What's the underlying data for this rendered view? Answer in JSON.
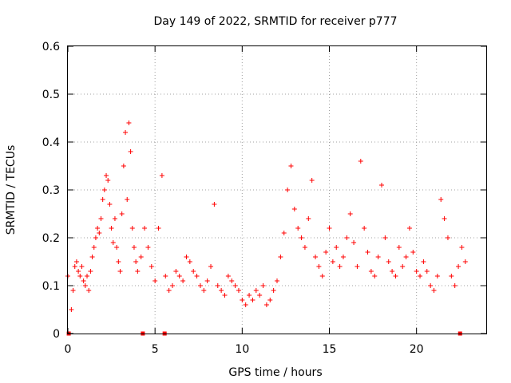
{
  "chart_data": {
    "type": "scatter",
    "title": "Day 149 of 2022, SRMTID for receiver p777",
    "xlabel": "GPS time / hours",
    "ylabel": "SRMTID / TECUs",
    "xlim": [
      0,
      24
    ],
    "ylim": [
      0,
      0.6
    ],
    "xticks": [
      0,
      5,
      10,
      15,
      20
    ],
    "xtick_labels": [
      "0",
      "5",
      "10",
      "15",
      "20"
    ],
    "yticks": [
      0,
      0.1,
      0.2,
      0.3,
      0.4,
      0.5,
      0.6
    ],
    "ytick_labels": [
      "0",
      "0.1",
      "0.2",
      "0.3",
      "0.4",
      "0.5",
      "0.6"
    ],
    "grid": true,
    "marker": "+",
    "series_color": "#ff0000",
    "series": [
      {
        "name": "SRMTID",
        "x": [
          0.0,
          0.2,
          0.3,
          0.4,
          0.5,
          0.6,
          0.7,
          0.8,
          0.9,
          1.0,
          1.1,
          1.2,
          1.3,
          1.4,
          1.5,
          1.6,
          1.7,
          1.8,
          1.9,
          2.0,
          2.1,
          2.2,
          2.3,
          2.4,
          2.5,
          2.6,
          2.7,
          2.8,
          2.9,
          3.0,
          3.1,
          3.2,
          3.3,
          3.4,
          3.5,
          3.6,
          3.7,
          3.8,
          3.9,
          4.0,
          4.2,
          4.4,
          4.6,
          4.8,
          5.0,
          5.2,
          5.4,
          5.6,
          5.8,
          6.0,
          6.2,
          6.4,
          6.6,
          6.8,
          7.0,
          7.2,
          7.4,
          7.6,
          7.8,
          8.0,
          8.2,
          8.4,
          8.6,
          8.8,
          9.0,
          9.2,
          9.4,
          9.6,
          9.8,
          10.0,
          10.2,
          10.4,
          10.6,
          10.8,
          11.0,
          11.2,
          11.4,
          11.6,
          11.8,
          12.0,
          12.2,
          12.4,
          12.6,
          12.8,
          13.0,
          13.2,
          13.4,
          13.6,
          13.8,
          14.0,
          14.2,
          14.4,
          14.6,
          14.8,
          15.0,
          15.2,
          15.4,
          15.6,
          15.8,
          16.0,
          16.2,
          16.4,
          16.6,
          16.8,
          17.0,
          17.2,
          17.4,
          17.6,
          17.8,
          18.0,
          18.2,
          18.4,
          18.6,
          18.8,
          19.0,
          19.2,
          19.4,
          19.6,
          19.8,
          20.0,
          20.2,
          20.4,
          20.6,
          20.8,
          21.0,
          21.2,
          21.4,
          21.6,
          21.8,
          22.0,
          22.2,
          22.4,
          22.6,
          22.8
        ],
        "y": [
          0.12,
          0.05,
          0.09,
          0.14,
          0.15,
          0.13,
          0.12,
          0.14,
          0.11,
          0.1,
          0.12,
          0.09,
          0.13,
          0.16,
          0.18,
          0.2,
          0.22,
          0.21,
          0.24,
          0.28,
          0.3,
          0.33,
          0.32,
          0.27,
          0.22,
          0.19,
          0.24,
          0.18,
          0.15,
          0.13,
          0.25,
          0.35,
          0.42,
          0.28,
          0.44,
          0.38,
          0.22,
          0.18,
          0.15,
          0.13,
          0.16,
          0.22,
          0.18,
          0.14,
          0.11,
          0.22,
          0.33,
          0.12,
          0.09,
          0.1,
          0.13,
          0.12,
          0.11,
          0.16,
          0.15,
          0.13,
          0.12,
          0.1,
          0.09,
          0.11,
          0.14,
          0.27,
          0.1,
          0.09,
          0.08,
          0.12,
          0.11,
          0.1,
          0.09,
          0.07,
          0.06,
          0.08,
          0.07,
          0.09,
          0.08,
          0.1,
          0.06,
          0.07,
          0.09,
          0.11,
          0.16,
          0.21,
          0.3,
          0.35,
          0.26,
          0.22,
          0.2,
          0.18,
          0.24,
          0.32,
          0.16,
          0.14,
          0.12,
          0.17,
          0.22,
          0.15,
          0.18,
          0.14,
          0.16,
          0.2,
          0.25,
          0.19,
          0.14,
          0.36,
          0.22,
          0.17,
          0.13,
          0.12,
          0.16,
          0.31,
          0.2,
          0.15,
          0.13,
          0.12,
          0.18,
          0.14,
          0.16,
          0.22,
          0.17,
          0.13,
          0.12,
          0.15,
          0.13,
          0.1,
          0.09,
          0.12,
          0.28,
          0.24,
          0.2,
          0.12,
          0.1,
          0.14,
          0.18,
          0.15
        ]
      }
    ],
    "xaxis_markers": [
      0.05,
      4.3,
      5.55,
      22.5
    ]
  }
}
